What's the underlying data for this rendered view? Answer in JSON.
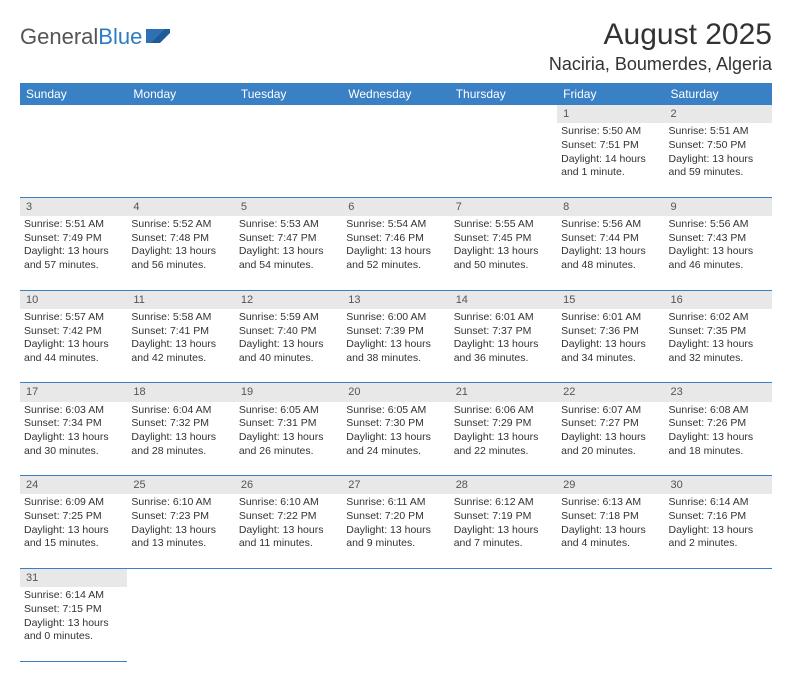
{
  "logo": {
    "text_general": "General",
    "text_blue": "Blue",
    "flag_color": "#2f6fb3"
  },
  "header": {
    "month_title": "August 2025",
    "location": "Naciria, Boumerdes, Algeria"
  },
  "colors": {
    "header_bg": "#3a80c4",
    "header_text": "#ffffff",
    "daynum_bg": "#e8e8e8",
    "border": "#3a80c4"
  },
  "day_labels": [
    "Sunday",
    "Monday",
    "Tuesday",
    "Wednesday",
    "Thursday",
    "Friday",
    "Saturday"
  ],
  "weeks": [
    {
      "nums": [
        "",
        "",
        "",
        "",
        "",
        "1",
        "2"
      ],
      "cells": [
        null,
        null,
        null,
        null,
        null,
        {
          "sunrise": "Sunrise: 5:50 AM",
          "sunset": "Sunset: 7:51 PM",
          "daylight": "Daylight: 14 hours and 1 minute."
        },
        {
          "sunrise": "Sunrise: 5:51 AM",
          "sunset": "Sunset: 7:50 PM",
          "daylight": "Daylight: 13 hours and 59 minutes."
        }
      ]
    },
    {
      "nums": [
        "3",
        "4",
        "5",
        "6",
        "7",
        "8",
        "9"
      ],
      "cells": [
        {
          "sunrise": "Sunrise: 5:51 AM",
          "sunset": "Sunset: 7:49 PM",
          "daylight": "Daylight: 13 hours and 57 minutes."
        },
        {
          "sunrise": "Sunrise: 5:52 AM",
          "sunset": "Sunset: 7:48 PM",
          "daylight": "Daylight: 13 hours and 56 minutes."
        },
        {
          "sunrise": "Sunrise: 5:53 AM",
          "sunset": "Sunset: 7:47 PM",
          "daylight": "Daylight: 13 hours and 54 minutes."
        },
        {
          "sunrise": "Sunrise: 5:54 AM",
          "sunset": "Sunset: 7:46 PM",
          "daylight": "Daylight: 13 hours and 52 minutes."
        },
        {
          "sunrise": "Sunrise: 5:55 AM",
          "sunset": "Sunset: 7:45 PM",
          "daylight": "Daylight: 13 hours and 50 minutes."
        },
        {
          "sunrise": "Sunrise: 5:56 AM",
          "sunset": "Sunset: 7:44 PM",
          "daylight": "Daylight: 13 hours and 48 minutes."
        },
        {
          "sunrise": "Sunrise: 5:56 AM",
          "sunset": "Sunset: 7:43 PM",
          "daylight": "Daylight: 13 hours and 46 minutes."
        }
      ]
    },
    {
      "nums": [
        "10",
        "11",
        "12",
        "13",
        "14",
        "15",
        "16"
      ],
      "cells": [
        {
          "sunrise": "Sunrise: 5:57 AM",
          "sunset": "Sunset: 7:42 PM",
          "daylight": "Daylight: 13 hours and 44 minutes."
        },
        {
          "sunrise": "Sunrise: 5:58 AM",
          "sunset": "Sunset: 7:41 PM",
          "daylight": "Daylight: 13 hours and 42 minutes."
        },
        {
          "sunrise": "Sunrise: 5:59 AM",
          "sunset": "Sunset: 7:40 PM",
          "daylight": "Daylight: 13 hours and 40 minutes."
        },
        {
          "sunrise": "Sunrise: 6:00 AM",
          "sunset": "Sunset: 7:39 PM",
          "daylight": "Daylight: 13 hours and 38 minutes."
        },
        {
          "sunrise": "Sunrise: 6:01 AM",
          "sunset": "Sunset: 7:37 PM",
          "daylight": "Daylight: 13 hours and 36 minutes."
        },
        {
          "sunrise": "Sunrise: 6:01 AM",
          "sunset": "Sunset: 7:36 PM",
          "daylight": "Daylight: 13 hours and 34 minutes."
        },
        {
          "sunrise": "Sunrise: 6:02 AM",
          "sunset": "Sunset: 7:35 PM",
          "daylight": "Daylight: 13 hours and 32 minutes."
        }
      ]
    },
    {
      "nums": [
        "17",
        "18",
        "19",
        "20",
        "21",
        "22",
        "23"
      ],
      "cells": [
        {
          "sunrise": "Sunrise: 6:03 AM",
          "sunset": "Sunset: 7:34 PM",
          "daylight": "Daylight: 13 hours and 30 minutes."
        },
        {
          "sunrise": "Sunrise: 6:04 AM",
          "sunset": "Sunset: 7:32 PM",
          "daylight": "Daylight: 13 hours and 28 minutes."
        },
        {
          "sunrise": "Sunrise: 6:05 AM",
          "sunset": "Sunset: 7:31 PM",
          "daylight": "Daylight: 13 hours and 26 minutes."
        },
        {
          "sunrise": "Sunrise: 6:05 AM",
          "sunset": "Sunset: 7:30 PM",
          "daylight": "Daylight: 13 hours and 24 minutes."
        },
        {
          "sunrise": "Sunrise: 6:06 AM",
          "sunset": "Sunset: 7:29 PM",
          "daylight": "Daylight: 13 hours and 22 minutes."
        },
        {
          "sunrise": "Sunrise: 6:07 AM",
          "sunset": "Sunset: 7:27 PM",
          "daylight": "Daylight: 13 hours and 20 minutes."
        },
        {
          "sunrise": "Sunrise: 6:08 AM",
          "sunset": "Sunset: 7:26 PM",
          "daylight": "Daylight: 13 hours and 18 minutes."
        }
      ]
    },
    {
      "nums": [
        "24",
        "25",
        "26",
        "27",
        "28",
        "29",
        "30"
      ],
      "cells": [
        {
          "sunrise": "Sunrise: 6:09 AM",
          "sunset": "Sunset: 7:25 PM",
          "daylight": "Daylight: 13 hours and 15 minutes."
        },
        {
          "sunrise": "Sunrise: 6:10 AM",
          "sunset": "Sunset: 7:23 PM",
          "daylight": "Daylight: 13 hours and 13 minutes."
        },
        {
          "sunrise": "Sunrise: 6:10 AM",
          "sunset": "Sunset: 7:22 PM",
          "daylight": "Daylight: 13 hours and 11 minutes."
        },
        {
          "sunrise": "Sunrise: 6:11 AM",
          "sunset": "Sunset: 7:20 PM",
          "daylight": "Daylight: 13 hours and 9 minutes."
        },
        {
          "sunrise": "Sunrise: 6:12 AM",
          "sunset": "Sunset: 7:19 PM",
          "daylight": "Daylight: 13 hours and 7 minutes."
        },
        {
          "sunrise": "Sunrise: 6:13 AM",
          "sunset": "Sunset: 7:18 PM",
          "daylight": "Daylight: 13 hours and 4 minutes."
        },
        {
          "sunrise": "Sunrise: 6:14 AM",
          "sunset": "Sunset: 7:16 PM",
          "daylight": "Daylight: 13 hours and 2 minutes."
        }
      ]
    },
    {
      "nums": [
        "31",
        "",
        "",
        "",
        "",
        "",
        ""
      ],
      "cells": [
        {
          "sunrise": "Sunrise: 6:14 AM",
          "sunset": "Sunset: 7:15 PM",
          "daylight": "Daylight: 13 hours and 0 minutes."
        },
        null,
        null,
        null,
        null,
        null,
        null
      ]
    }
  ]
}
